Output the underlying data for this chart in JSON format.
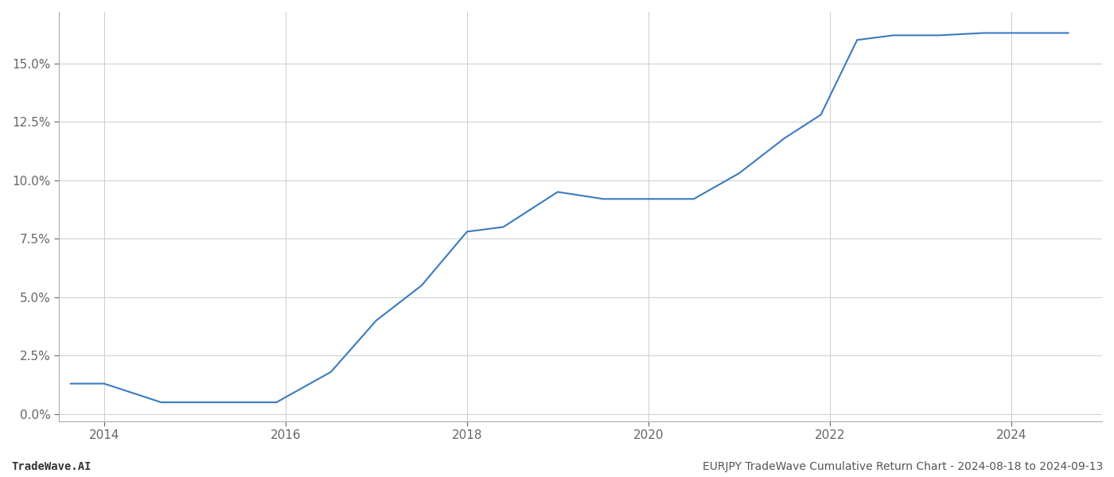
{
  "title": "EURJPY TradeWave Cumulative Return Chart - 2024-08-18 to 2024-09-13",
  "watermark": "TradeWave.AI",
  "line_color": "#3a7bbf",
  "background_color": "#ffffff",
  "grid_color": "#cccccc",
  "x_values": [
    2013.63,
    2014.0,
    2014.63,
    2015.0,
    2015.5,
    2015.9,
    2016.5,
    2017.0,
    2017.5,
    2018.0,
    2018.4,
    2019.0,
    2019.5,
    2020.0,
    2020.5,
    2021.0,
    2021.5,
    2021.9,
    2022.3,
    2022.7,
    2023.2,
    2023.7,
    2024.0,
    2024.63
  ],
  "y_values": [
    0.013,
    0.013,
    0.005,
    0.005,
    0.005,
    0.005,
    0.018,
    0.04,
    0.055,
    0.078,
    0.08,
    0.095,
    0.092,
    0.092,
    0.092,
    0.103,
    0.118,
    0.128,
    0.16,
    0.162,
    0.162,
    0.163,
    0.163,
    0.163
  ],
  "xlim": [
    2013.5,
    2025.0
  ],
  "ylim": [
    -0.003,
    0.172
  ],
  "xticks": [
    2014,
    2016,
    2018,
    2020,
    2022,
    2024
  ],
  "yticks": [
    0.0,
    0.025,
    0.05,
    0.075,
    0.1,
    0.125,
    0.15
  ],
  "ytick_labels": [
    "0.0%",
    "2.5%",
    "5.0%",
    "7.5%",
    "10.0%",
    "12.5%",
    "15.0%"
  ],
  "line_width": 1.5,
  "font_color": "#666666",
  "tick_font_size": 11,
  "footer_font_size": 10
}
